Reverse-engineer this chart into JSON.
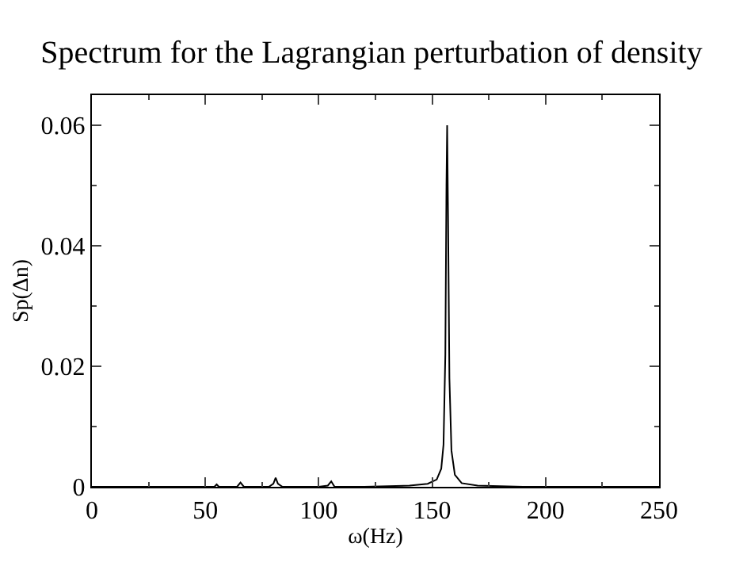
{
  "chart_data": {
    "type": "line",
    "title": "Spectrum for the Lagrangian perturbation of density",
    "xlabel": "ω(Hz)",
    "ylabel": "Sp(Δn)",
    "series": [
      {
        "color": "#000000",
        "x": [
          0,
          20,
          40,
          54,
          55,
          56,
          64,
          65.5,
          67,
          78,
          80,
          81,
          82,
          84,
          100,
          104,
          105.5,
          107,
          120,
          140,
          148,
          152,
          154,
          155,
          155.8,
          156.3,
          156.6,
          157,
          157.6,
          158.5,
          160,
          163,
          170,
          190,
          220,
          250
        ],
        "values": [
          0,
          0,
          0,
          0,
          0.0004,
          0,
          0,
          0.0007,
          0,
          0,
          0.0005,
          0.0015,
          0.0005,
          0,
          0,
          0.0002,
          0.0009,
          0,
          0,
          0.0002,
          0.0005,
          0.0012,
          0.003,
          0.007,
          0.022,
          0.05,
          0.06,
          0.045,
          0.018,
          0.006,
          0.002,
          0.0006,
          0.0002,
          0,
          0,
          0
        ]
      }
    ],
    "xlim": [
      0,
      250
    ],
    "ylim": [
      0,
      0.065
    ],
    "xticks": [
      0,
      50,
      100,
      150,
      200,
      250
    ],
    "yticks": [
      0,
      0.02,
      0.04,
      0.06
    ],
    "legend": false,
    "marker": "none",
    "line_style": "solid"
  }
}
